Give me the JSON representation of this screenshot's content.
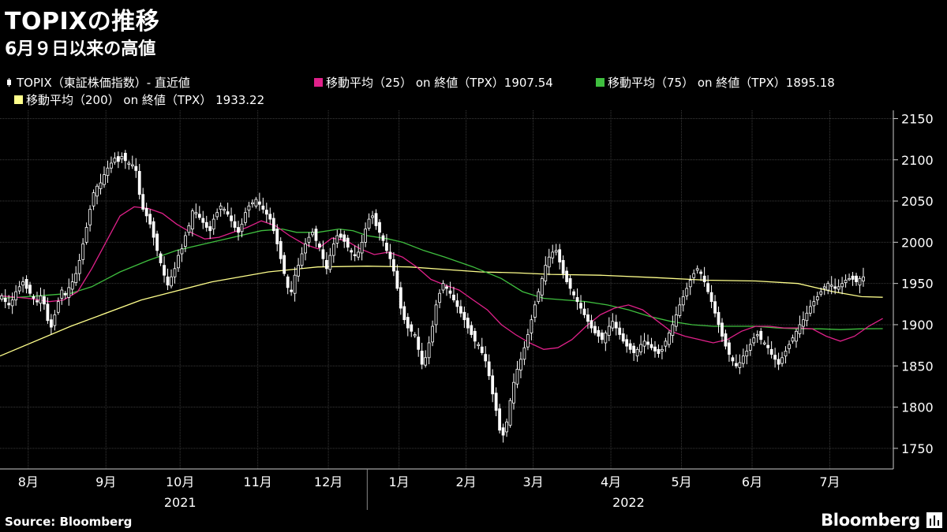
{
  "header": {
    "title": "TOPIXの推移",
    "subtitle": "6月９日以来の高値"
  },
  "legend": [
    {
      "label": "TOPIX（東証株価指数）- 直近値",
      "color": "#ffffff",
      "icon": "candlestick-icon"
    },
    {
      "label": "移動平均（25） on 終値（TPX）1907.54",
      "color": "#e0218a",
      "icon": "square-swatch"
    },
    {
      "label": "移動平均（75） on 終値（TPX）1895.18",
      "color": "#3fbf3f",
      "icon": "square-swatch"
    },
    {
      "label": "移動平均（200） on 終値（TPX） 1933.22",
      "color": "#ffff8c",
      "icon": "square-swatch"
    }
  ],
  "footer": {
    "source": "Source:  Bloomberg",
    "brand": "Bloomberg"
  },
  "colors": {
    "background": "#000000",
    "grid": "#3a3a3a",
    "candle": "#ffffff",
    "ma25": "#e0218a",
    "ma75": "#3fbf3f",
    "ma200": "#ffff8c"
  },
  "chart_data": {
    "type": "candlestick",
    "title": "TOPIXの推移",
    "subtitle": "6月９日以来の高値",
    "ylim": [
      1725,
      2160
    ],
    "yticks": [
      1750,
      1800,
      1850,
      1900,
      1950,
      2000,
      2050,
      2100,
      2150
    ],
    "y_axis_position": "right",
    "grid": true,
    "legend_position": "top",
    "x_unit": "trading_day_index",
    "xlim": [
      0,
      253
    ],
    "month_labels": [
      {
        "label": "8月",
        "x": 8
      },
      {
        "label": "9月",
        "x": 30
      },
      {
        "label": "10月",
        "x": 51
      },
      {
        "label": "11月",
        "x": 73
      },
      {
        "label": "12月",
        "x": 93
      },
      {
        "label": "1月",
        "x": 113
      },
      {
        "label": "2月",
        "x": 132
      },
      {
        "label": "3月",
        "x": 151
      },
      {
        "label": "4月",
        "x": 173
      },
      {
        "label": "5月",
        "x": 193
      },
      {
        "label": "6月",
        "x": 213
      },
      {
        "label": "7月",
        "x": 235
      }
    ],
    "year_labels": [
      {
        "label": "2021",
        "x": 51
      },
      {
        "label": "2022",
        "x": 178
      }
    ],
    "year_divider_x": 104,
    "candles_close": [
      1935,
      1928,
      1924,
      1930,
      1940,
      1946,
      1952,
      1944,
      1938,
      1932,
      1928,
      1935,
      1925,
      1905,
      1897,
      1912,
      1928,
      1942,
      1936,
      1945,
      1952,
      1962,
      1978,
      1998,
      2018,
      2040,
      2060,
      2068,
      2072,
      2082,
      2090,
      2096,
      2102,
      2098,
      2104,
      2099,
      2096,
      2094,
      2087,
      2058,
      2040,
      2032,
      2022,
      2006,
      1990,
      1975,
      1960,
      1948,
      1958,
      1968,
      1984,
      1992,
      2008,
      2020,
      2038,
      2036,
      2030,
      2024,
      2018,
      2014,
      2028,
      2036,
      2044,
      2040,
      2034,
      2026,
      2018,
      2012,
      2022,
      2036,
      2044,
      2048,
      2052,
      2046,
      2040,
      2034,
      2028,
      2014,
      1998,
      1980,
      1962,
      1945,
      1940,
      1960,
      1972,
      1986,
      1998,
      2006,
      2012,
      2002,
      1994,
      1980,
      1968,
      1984,
      1998,
      2008,
      2006,
      2001,
      1994,
      1988,
      1984,
      1988,
      2000,
      2016,
      2028,
      2032,
      2020,
      2012,
      2002,
      1990,
      1980,
      1965,
      1944,
      1920,
      1906,
      1896,
      1892,
      1888,
      1870,
      1852,
      1860,
      1878,
      1898,
      1924,
      1938,
      1950,
      1944,
      1938,
      1930,
      1922,
      1914,
      1906,
      1896,
      1888,
      1880,
      1876,
      1866,
      1856,
      1838,
      1816,
      1796,
      1772,
      1766,
      1782,
      1808,
      1830,
      1846,
      1858,
      1872,
      1888,
      1906,
      1924,
      1940,
      1956,
      1972,
      1982,
      1988,
      1990,
      1976,
      1962,
      1952,
      1944,
      1936,
      1928,
      1920,
      1912,
      1904,
      1896,
      1890,
      1886,
      1882,
      1890,
      1898,
      1904,
      1896,
      1888,
      1880,
      1874,
      1870,
      1866,
      1870,
      1876,
      1880,
      1876,
      1872,
      1868,
      1865,
      1870,
      1880,
      1890,
      1900,
      1912,
      1924,
      1934,
      1944,
      1954,
      1962,
      1968,
      1962,
      1952,
      1940,
      1928,
      1914,
      1900,
      1886,
      1874,
      1864,
      1856,
      1850,
      1854,
      1862,
      1868,
      1876,
      1884,
      1888,
      1882,
      1878,
      1872,
      1864,
      1858,
      1852,
      1860,
      1868,
      1876,
      1884,
      1892,
      1900,
      1906,
      1914,
      1922,
      1928,
      1934,
      1940,
      1946,
      1950,
      1948,
      1944,
      1946,
      1950,
      1954,
      1956,
      1955,
      1952,
      1956,
      1958
    ],
    "series": [
      {
        "name": "移動平均（25） on 終値（TPX）",
        "points": [
          [
            0,
            1935
          ],
          [
            8,
            1932
          ],
          [
            14,
            1928
          ],
          [
            18,
            1930
          ],
          [
            22,
            1940
          ],
          [
            26,
            1968
          ],
          [
            30,
            2000
          ],
          [
            34,
            2032
          ],
          [
            38,
            2043
          ],
          [
            42,
            2041
          ],
          [
            46,
            2035
          ],
          [
            50,
            2022
          ],
          [
            54,
            2012
          ],
          [
            58,
            2004
          ],
          [
            62,
            2006
          ],
          [
            66,
            2012
          ],
          [
            70,
            2018
          ],
          [
            74,
            2026
          ],
          [
            78,
            2020
          ],
          [
            82,
            2008
          ],
          [
            86,
            1998
          ],
          [
            90,
            1992
          ],
          [
            94,
            2005
          ],
          [
            98,
            2002
          ],
          [
            102,
            1992
          ],
          [
            106,
            1985
          ],
          [
            110,
            1988
          ],
          [
            114,
            1982
          ],
          [
            118,
            1970
          ],
          [
            122,
            1955
          ],
          [
            126,
            1948
          ],
          [
            130,
            1942
          ],
          [
            134,
            1930
          ],
          [
            138,
            1918
          ],
          [
            142,
            1900
          ],
          [
            146,
            1888
          ],
          [
            150,
            1878
          ],
          [
            154,
            1870
          ],
          [
            158,
            1872
          ],
          [
            162,
            1882
          ],
          [
            166,
            1898
          ],
          [
            170,
            1912
          ],
          [
            174,
            1920
          ],
          [
            178,
            1924
          ],
          [
            182,
            1918
          ],
          [
            186,
            1905
          ],
          [
            190,
            1892
          ],
          [
            194,
            1886
          ],
          [
            198,
            1882
          ],
          [
            202,
            1878
          ],
          [
            206,
            1882
          ],
          [
            210,
            1892
          ],
          [
            214,
            1898
          ],
          [
            218,
            1898
          ],
          [
            222,
            1896
          ],
          [
            226,
            1896
          ],
          [
            230,
            1895
          ],
          [
            234,
            1886
          ],
          [
            238,
            1880
          ],
          [
            242,
            1886
          ],
          [
            246,
            1898
          ],
          [
            250,
            1907.54
          ]
        ]
      },
      {
        "name": "移動平均（75） on 終値（TPX）",
        "points": [
          [
            0,
            1932
          ],
          [
            8,
            1934
          ],
          [
            14,
            1936
          ],
          [
            20,
            1938
          ],
          [
            26,
            1946
          ],
          [
            34,
            1964
          ],
          [
            42,
            1978
          ],
          [
            50,
            1990
          ],
          [
            58,
            1998
          ],
          [
            66,
            2006
          ],
          [
            74,
            2014
          ],
          [
            80,
            2016
          ],
          [
            84,
            2012
          ],
          [
            90,
            2012
          ],
          [
            96,
            2016
          ],
          [
            100,
            2014
          ],
          [
            104,
            2008
          ],
          [
            110,
            2004
          ],
          [
            114,
            2000
          ],
          [
            120,
            1990
          ],
          [
            126,
            1982
          ],
          [
            134,
            1970
          ],
          [
            142,
            1956
          ],
          [
            148,
            1940
          ],
          [
            154,
            1932
          ],
          [
            160,
            1930
          ],
          [
            166,
            1928
          ],
          [
            172,
            1924
          ],
          [
            178,
            1918
          ],
          [
            184,
            1910
          ],
          [
            190,
            1904
          ],
          [
            196,
            1900
          ],
          [
            202,
            1898
          ],
          [
            208,
            1898
          ],
          [
            214,
            1898
          ],
          [
            220,
            1896
          ],
          [
            226,
            1895
          ],
          [
            232,
            1895
          ],
          [
            238,
            1894
          ],
          [
            244,
            1895
          ],
          [
            250,
            1895.18
          ]
        ]
      },
      {
        "name": "移動平均（200） on 終値（TPX）",
        "points": [
          [
            0,
            1862
          ],
          [
            20,
            1898
          ],
          [
            40,
            1930
          ],
          [
            60,
            1952
          ],
          [
            76,
            1964
          ],
          [
            90,
            1970
          ],
          [
            104,
            1971
          ],
          [
            116,
            1970
          ],
          [
            126,
            1967
          ],
          [
            136,
            1964
          ],
          [
            146,
            1963
          ],
          [
            156,
            1961
          ],
          [
            170,
            1960
          ],
          [
            186,
            1957
          ],
          [
            200,
            1954
          ],
          [
            214,
            1953
          ],
          [
            226,
            1950
          ],
          [
            236,
            1940
          ],
          [
            244,
            1934
          ],
          [
            250,
            1933.22
          ]
        ]
      }
    ]
  }
}
